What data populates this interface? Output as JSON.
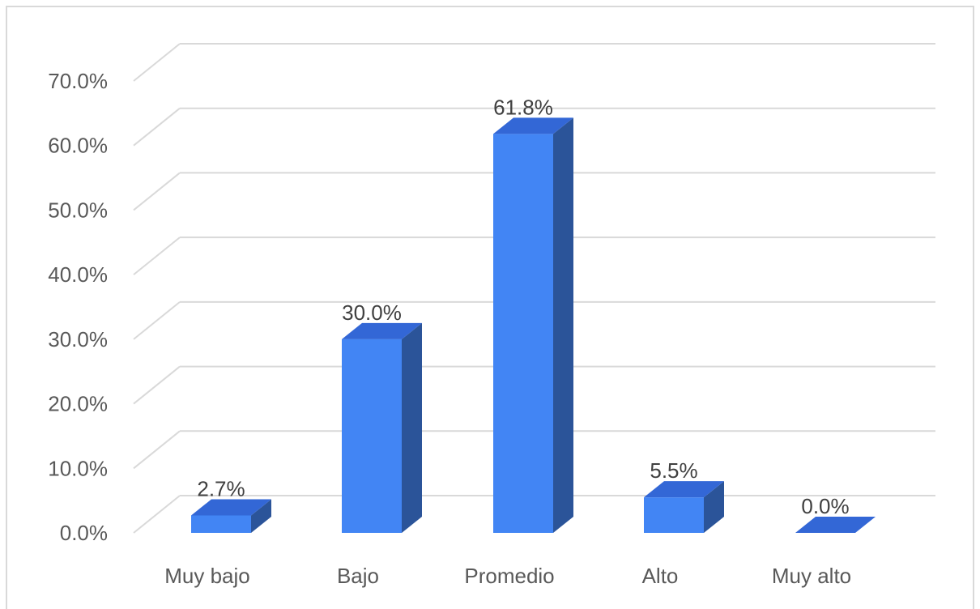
{
  "chart_data": {
    "type": "bar",
    "style": "3d-column",
    "categories": [
      "Muy bajo",
      "Bajo",
      "Promedio",
      "Alto",
      "Muy alto"
    ],
    "values": [
      2.7,
      30.0,
      61.8,
      5.5,
      0.0
    ],
    "data_labels": [
      "2.7%",
      "30.0%",
      "61.8%",
      "5.5%",
      "0.0%"
    ],
    "y_ticks": [
      "0.0%",
      "10.0%",
      "20.0%",
      "30.0%",
      "40.0%",
      "50.0%",
      "60.0%",
      "70.0%"
    ],
    "ylim": [
      0,
      70
    ],
    "grid": true,
    "legend": "none",
    "colors": {
      "front": "#4285f4",
      "side": "#2b5499",
      "top": "#3367d6",
      "grid": "#d9d9d9",
      "text": "#595959"
    }
  }
}
